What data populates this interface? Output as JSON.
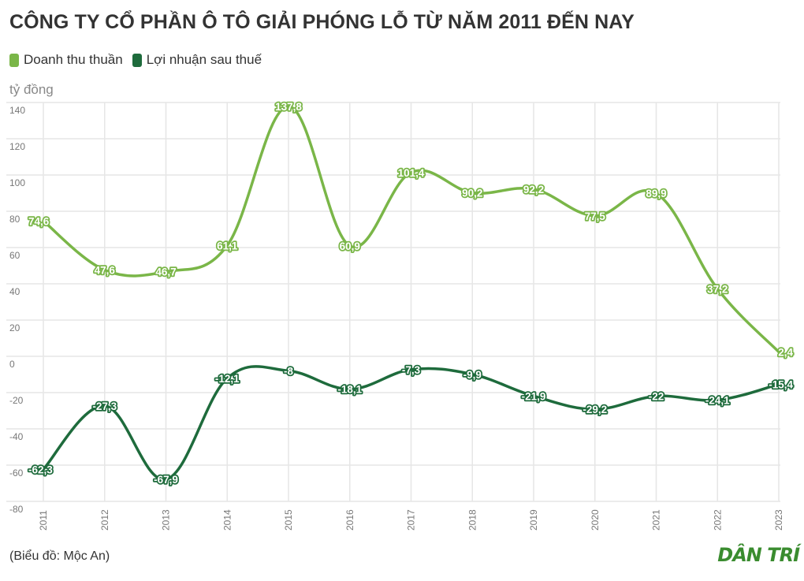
{
  "title": "CÔNG TY CỔ PHẦN Ô TÔ GIẢI PHÓNG LỖ TỪ NĂM 2011 ĐẾN NAY",
  "unit_label": "tỷ đồng",
  "source": "(Biểu đồ: Mộc An)",
  "logo": "DÂN TRÍ",
  "colors": {
    "revenue": "#7ab648",
    "profit": "#1e6b3c",
    "grid": "#e6e6e6",
    "logo": "#3a8c2f"
  },
  "chart_data": {
    "type": "line",
    "x": [
      "2011",
      "2012",
      "2013",
      "2014",
      "2015",
      "2016",
      "2017",
      "2018",
      "2019",
      "2020",
      "2021",
      "2022",
      "2023"
    ],
    "ylim": [
      -80,
      140
    ],
    "yticks": [
      "140",
      "120",
      "100",
      "80",
      "60",
      "40",
      "20",
      "0",
      "-20",
      "-40",
      "-60",
      "-80"
    ],
    "grid": true,
    "legend_position": "top-left",
    "series": [
      {
        "name": "Doanh thu thuần",
        "values": [
          74.6,
          47.6,
          46.7,
          61.1,
          137.8,
          60.9,
          101.4,
          90.2,
          92.2,
          77.5,
          89.9,
          37.2,
          2.4
        ],
        "labels": [
          "74,6",
          "47,6",
          "46,7",
          "61,1",
          "137,8",
          "60,9",
          "101,4",
          "90,2",
          "92,2",
          "77,5",
          "89,9",
          "37,2",
          "2,4"
        ]
      },
      {
        "name": "Lợi nhuận sau thuế",
        "values": [
          -62.3,
          -27.3,
          -67.9,
          -12.1,
          -8,
          -18.1,
          -7.3,
          -9.9,
          -21.9,
          -29.2,
          -22,
          -24.1,
          -15.4
        ],
        "labels": [
          "-62,3",
          "-27,3",
          "-67,9",
          "-12,1",
          "-8",
          "-18,1",
          "-7,3",
          "-9,9",
          "-21,9",
          "-29,2",
          "-22",
          "-24,1",
          "-15,4"
        ]
      }
    ]
  }
}
